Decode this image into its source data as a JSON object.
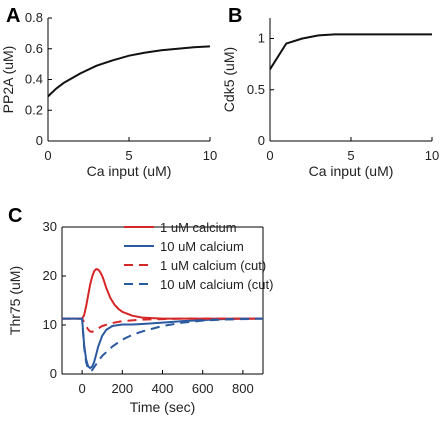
{
  "chart_data": [
    {
      "panel": "A",
      "type": "line",
      "xlabel": "Ca input (uM)",
      "ylabel": "PP2A (uM)",
      "xlim": [
        0,
        10
      ],
      "ylim": [
        0,
        0.8
      ],
      "xticks": [
        0,
        5,
        10
      ],
      "yticks": [
        0,
        0.2,
        0.4,
        0.6,
        0.8
      ],
      "grid": false,
      "series": [
        {
          "color": "#111111",
          "x": [
            0,
            0.5,
            1,
            2,
            3,
            4,
            5,
            6,
            7,
            8,
            9,
            10
          ],
          "y": [
            0.29,
            0.34,
            0.38,
            0.44,
            0.49,
            0.525,
            0.555,
            0.575,
            0.59,
            0.6,
            0.61,
            0.615
          ]
        }
      ]
    },
    {
      "panel": "B",
      "type": "line",
      "xlabel": "Ca input (uM)",
      "ylabel": "Cdk5 (uM)",
      "xlim": [
        0,
        10
      ],
      "ylim": [
        0,
        1.2
      ],
      "xticks": [
        0,
        5,
        10
      ],
      "yticks": [
        0,
        0.5,
        1
      ],
      "grid": false,
      "series": [
        {
          "color": "#111111",
          "x": [
            0,
            1,
            2,
            3,
            4,
            5,
            6,
            7,
            8,
            9,
            10
          ],
          "y": [
            0.7,
            0.95,
            1.0,
            1.03,
            1.04,
            1.04,
            1.04,
            1.04,
            1.04,
            1.04,
            1.04
          ]
        }
      ]
    },
    {
      "panel": "C",
      "type": "line",
      "xlabel": "Time (sec)",
      "ylabel": "Thr75 (uM)",
      "xlim": [
        -100,
        900
      ],
      "ylim": [
        0,
        30
      ],
      "xticks": [
        0,
        200,
        400,
        600,
        800
      ],
      "yticks": [
        0,
        10,
        20,
        30
      ],
      "grid": false,
      "legend": "top-right",
      "series": [
        {
          "name": "1 uM calcium",
          "color": "#d62728",
          "dash": false,
          "x": [
            -100,
            0,
            10,
            20,
            30,
            40,
            50,
            60,
            70,
            80,
            90,
            100,
            110,
            120,
            140,
            160,
            180,
            200,
            250,
            300,
            400,
            500,
            600,
            700,
            800,
            900
          ],
          "y": [
            11.3,
            11.3,
            12.0,
            13.8,
            16.0,
            18.2,
            19.9,
            21.0,
            21.4,
            21.3,
            20.8,
            20.0,
            18.9,
            17.6,
            15.6,
            14.2,
            13.3,
            12.7,
            11.9,
            11.5,
            11.3,
            11.3,
            11.3,
            11.3,
            11.3,
            11.3
          ]
        },
        {
          "name": "10 uM calcium",
          "color": "#2c5aa0",
          "dash": false,
          "x": [
            -100,
            0,
            10,
            20,
            30,
            40,
            50,
            60,
            70,
            80,
            100,
            120,
            150,
            200,
            250,
            300,
            400,
            500,
            600,
            700,
            800,
            900
          ],
          "y": [
            11.3,
            11.3,
            6.0,
            3.0,
            1.6,
            1.2,
            1.5,
            2.5,
            4.0,
            5.6,
            7.8,
            9.0,
            9.8,
            10.1,
            10.1,
            10.2,
            10.5,
            10.8,
            11.0,
            11.2,
            11.3,
            11.3
          ]
        },
        {
          "name": "1 uM calcium (cut)",
          "color": "#d62728",
          "dash": true,
          "x": [
            -100,
            0,
            10,
            20,
            30,
            40,
            50,
            60,
            80,
            100,
            150,
            200,
            300,
            400,
            500,
            600,
            700,
            800,
            900
          ],
          "y": [
            11.3,
            11.3,
            10.6,
            9.8,
            9.1,
            8.7,
            8.6,
            8.8,
            9.3,
            9.8,
            10.4,
            10.8,
            11.1,
            11.2,
            11.3,
            11.3,
            11.3,
            11.3,
            11.3
          ]
        },
        {
          "name": "10 uM calcium (cut)",
          "color": "#2c5aa0",
          "dash": true,
          "x": [
            -100,
            0,
            10,
            20,
            30,
            40,
            50,
            60,
            80,
            100,
            150,
            200,
            250,
            300,
            400,
            500,
            600,
            700,
            800,
            900
          ],
          "y": [
            11.3,
            11.3,
            5.5,
            2.4,
            1.1,
            0.6,
            0.8,
            1.4,
            2.6,
            3.7,
            5.6,
            7.0,
            8.0,
            8.7,
            9.8,
            10.5,
            10.9,
            11.1,
            11.2,
            11.3
          ]
        }
      ]
    }
  ]
}
